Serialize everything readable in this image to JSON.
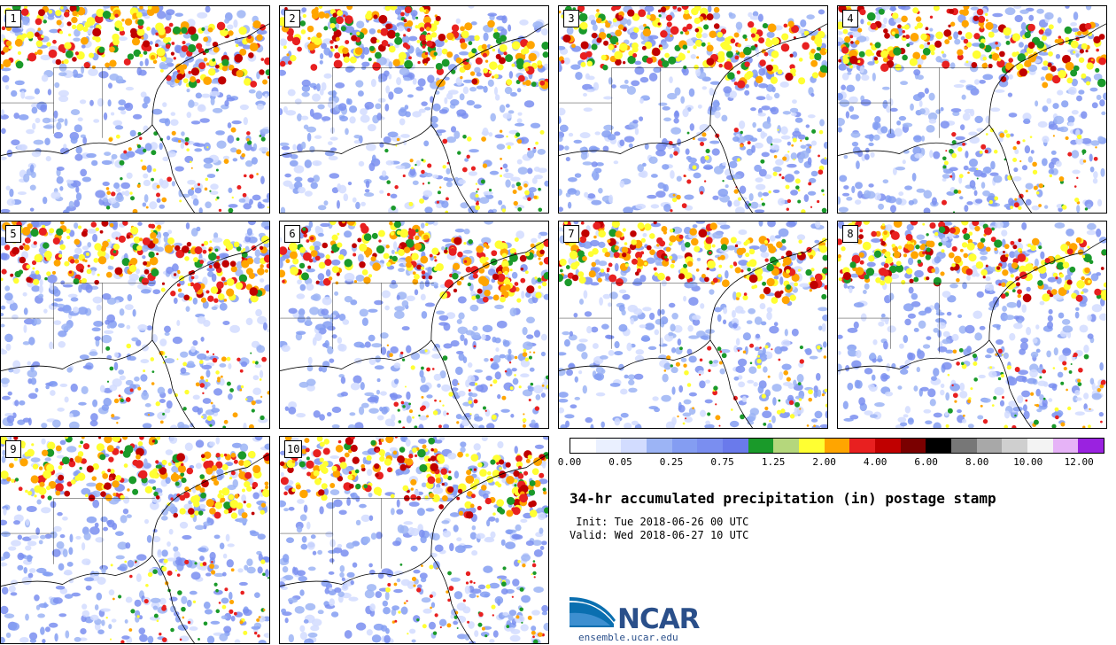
{
  "panels": [
    {
      "label": "1"
    },
    {
      "label": "2"
    },
    {
      "label": "3"
    },
    {
      "label": "4"
    },
    {
      "label": "5"
    },
    {
      "label": "6"
    },
    {
      "label": "7"
    },
    {
      "label": "8"
    },
    {
      "label": "9"
    },
    {
      "label": "10"
    }
  ],
  "colorbar": {
    "colors": [
      "#ffffff",
      "#eaf0ff",
      "#d2dcff",
      "#9cb4f5",
      "#849df2",
      "#7a8ef0",
      "#6a7aeb",
      "#1a9a2a",
      "#b5d77c",
      "#ffff32",
      "#ffa500",
      "#e82020",
      "#c00000",
      "#7a0000",
      "#000000",
      "#777777",
      "#a8a8a8",
      "#cfcfcf",
      "#f3f3f3",
      "#e6b3f7",
      "#9a22e0"
    ],
    "ticks": [
      "0.00",
      "0.05",
      "0.25",
      "0.75",
      "1.25",
      "2.00",
      "4.00",
      "6.00",
      "8.00",
      "10.00",
      "12.00"
    ]
  },
  "title": "34-hr accumulated precipitation (in) postage stamp",
  "init": " Init: Tue 2018-06-26 00 UTC",
  "valid": "Valid: Wed 2018-06-27 10 UTC",
  "logo": {
    "word": "NCAR",
    "url": "ensemble.ucar.edu",
    "colors": {
      "blue": "#0a6fb0",
      "text": "#2a4f8a"
    }
  }
}
